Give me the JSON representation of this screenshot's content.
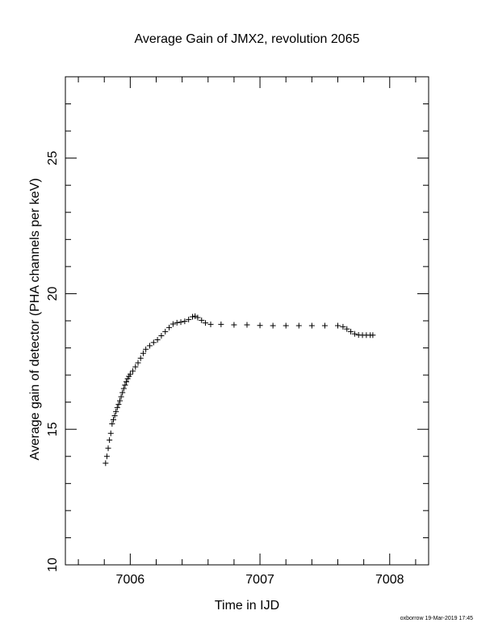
{
  "chart_data": {
    "type": "scatter",
    "title": "Average Gain of JMX2, revolution 2065",
    "xlabel": "Time in IJD",
    "ylabel": "Average gain of detector (PHA channels per keV)",
    "xlim": [
      7005.5,
      7008.3
    ],
    "ylim": [
      10,
      28
    ],
    "xticks": [
      7006,
      7007,
      7008
    ],
    "yticks": [
      10,
      15,
      20,
      25
    ],
    "grid": false,
    "marker": "+",
    "color": "#000000",
    "points": [
      [
        7005.81,
        13.75
      ],
      [
        7005.82,
        14.0
      ],
      [
        7005.83,
        14.3
      ],
      [
        7005.84,
        14.6
      ],
      [
        7005.85,
        14.85
      ],
      [
        7005.86,
        15.2
      ],
      [
        7005.87,
        15.35
      ],
      [
        7005.88,
        15.5
      ],
      [
        7005.89,
        15.65
      ],
      [
        7005.9,
        15.8
      ],
      [
        7005.91,
        15.92
      ],
      [
        7005.92,
        16.05
      ],
      [
        7005.93,
        16.2
      ],
      [
        7005.94,
        16.35
      ],
      [
        7005.95,
        16.5
      ],
      [
        7005.96,
        16.63
      ],
      [
        7005.97,
        16.75
      ],
      [
        7005.98,
        16.86
      ],
      [
        7005.99,
        16.95
      ],
      [
        7006.0,
        17.03
      ],
      [
        7006.02,
        17.15
      ],
      [
        7006.04,
        17.3
      ],
      [
        7006.06,
        17.45
      ],
      [
        7006.08,
        17.62
      ],
      [
        7006.1,
        17.8
      ],
      [
        7006.12,
        17.95
      ],
      [
        7006.15,
        18.08
      ],
      [
        7006.18,
        18.2
      ],
      [
        7006.21,
        18.3
      ],
      [
        7006.24,
        18.45
      ],
      [
        7006.27,
        18.6
      ],
      [
        7006.3,
        18.75
      ],
      [
        7006.33,
        18.88
      ],
      [
        7006.36,
        18.93
      ],
      [
        7006.39,
        18.95
      ],
      [
        7006.42,
        18.98
      ],
      [
        7006.45,
        19.05
      ],
      [
        7006.48,
        19.15
      ],
      [
        7006.5,
        19.17
      ],
      [
        7006.52,
        19.12
      ],
      [
        7006.55,
        19.02
      ],
      [
        7006.58,
        18.92
      ],
      [
        7006.62,
        18.87
      ],
      [
        7006.7,
        18.87
      ],
      [
        7006.8,
        18.85
      ],
      [
        7006.9,
        18.85
      ],
      [
        7007.0,
        18.83
      ],
      [
        7007.1,
        18.82
      ],
      [
        7007.2,
        18.82
      ],
      [
        7007.3,
        18.82
      ],
      [
        7007.4,
        18.82
      ],
      [
        7007.5,
        18.82
      ],
      [
        7007.6,
        18.82
      ],
      [
        7007.64,
        18.78
      ],
      [
        7007.67,
        18.7
      ],
      [
        7007.7,
        18.6
      ],
      [
        7007.73,
        18.52
      ],
      [
        7007.76,
        18.48
      ],
      [
        7007.79,
        18.47
      ],
      [
        7007.82,
        18.47
      ],
      [
        7007.85,
        18.47
      ],
      [
        7007.87,
        18.47
      ]
    ]
  },
  "footer": {
    "credit": "oxborrow 19-Mar-2019 17:45"
  }
}
